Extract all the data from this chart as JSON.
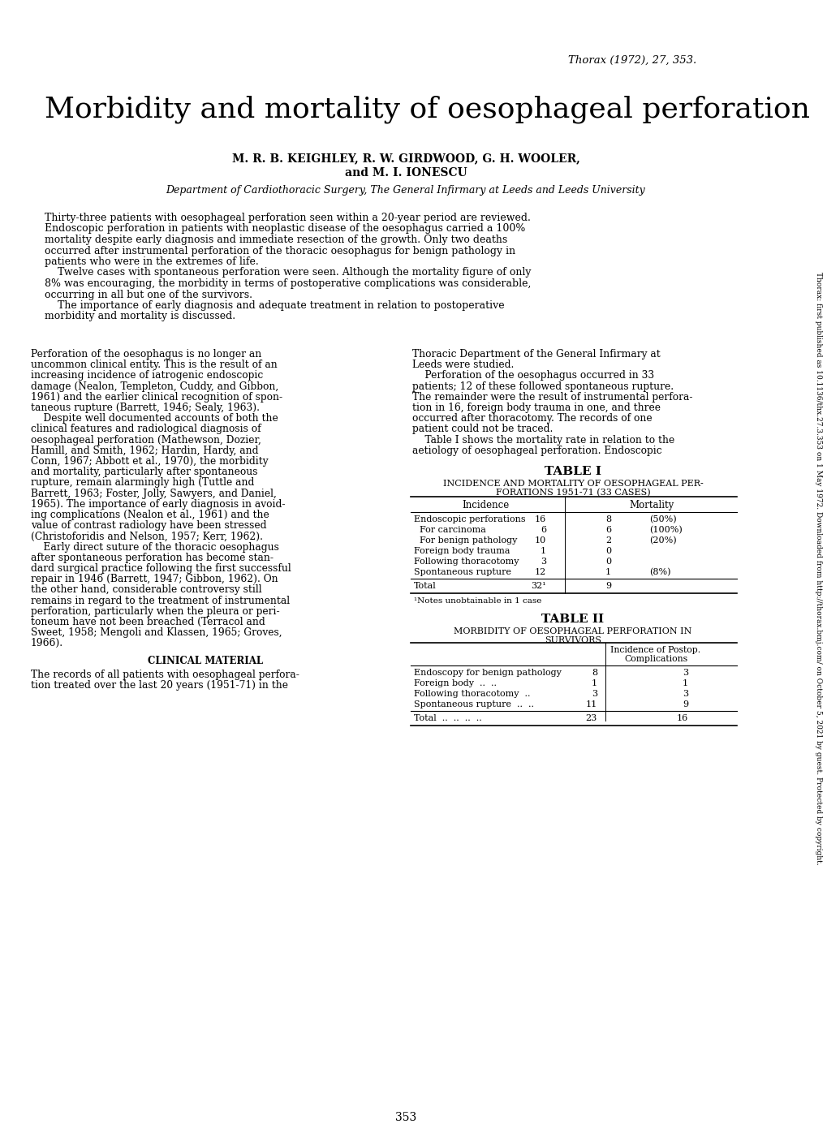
{
  "bg_color": "#ffffff",
  "journal_ref": "Thorax (1972), 27, 353.",
  "title": "Morbidity and mortality of oesophageal perforation",
  "authors_line1": "M. R. B. KEIGHLEY, R. W. GIRDWOOD, G. H. WOOLER,",
  "authors_line2": "and M. I. IONESCU",
  "department": "Department of Cardiothoracic Surgery, The General Infirmary at Leeds and Leeds University",
  "table1_title": "TABLE I",
  "table1_subtitle_1": "INCIDENCE AND MORTALITY OF OESOPHAGEAL PER-",
  "table1_subtitle_2": "FORATIONS 1951-71 (33 CASES)",
  "table1_footnote": "¹Notes unobtainable in 1 case",
  "table2_title": "TABLE II",
  "table2_subtitle_1": "MORBIDITY OF OESOPHAGEAL PERFORATION IN",
  "table2_subtitle_2": "SURVIVORS",
  "page_num": "353",
  "side_text": "Thorax: first published as 10.1136/thx.27.3.353 on 1 May 1972. Downloaded from http://thorax.bmj.com/ on October 5, 2021 by guest. Protected by copyright."
}
